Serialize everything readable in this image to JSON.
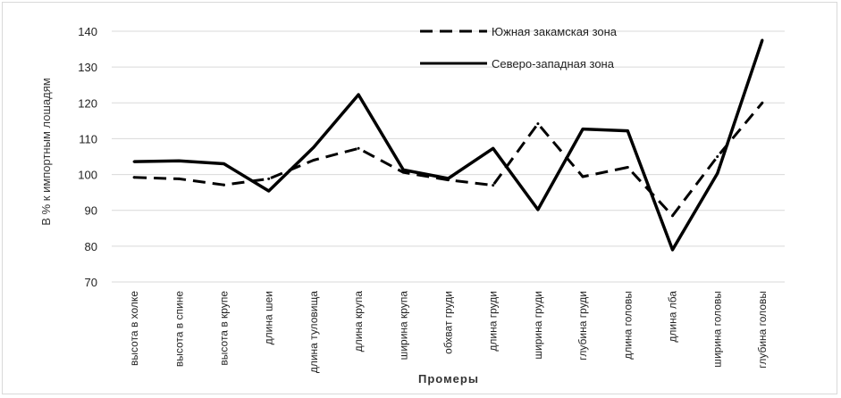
{
  "chart_data": {
    "type": "line",
    "title": "",
    "xlabel": "Промеры",
    "ylabel": "В % к импортным лошадям",
    "ylim": [
      70,
      140
    ],
    "yticks": [
      70,
      80,
      90,
      100,
      110,
      120,
      130,
      140
    ],
    "grid": true,
    "legend_position": "top-right",
    "categories": [
      "высота в холке",
      "высота в спине",
      "высота в крупе",
      "длина шеи",
      "длина туловища",
      "длина крупа",
      "ширина крупа",
      "обхват груди",
      "длина груди",
      "ширина груди",
      "глубина груди",
      "длина головы",
      "длина лба",
      "ширина головы",
      "глубина головы"
    ],
    "series": [
      {
        "name": "Южная закамская зона",
        "style": "dashed",
        "color": "#000000",
        "values": [
          99.2,
          98.8,
          97.1,
          98.8,
          104,
          107.3,
          100.6,
          98.5,
          97,
          114.2,
          99.4,
          102,
          88.5,
          105,
          120
        ]
      },
      {
        "name": "Северо-западная зона",
        "style": "solid",
        "color": "#000000",
        "values": [
          103.6,
          103.8,
          103,
          95.4,
          107.6,
          122.3,
          101.3,
          98.9,
          107.3,
          90.2,
          112.7,
          112.2,
          79,
          100.3,
          137.5
        ]
      }
    ]
  }
}
